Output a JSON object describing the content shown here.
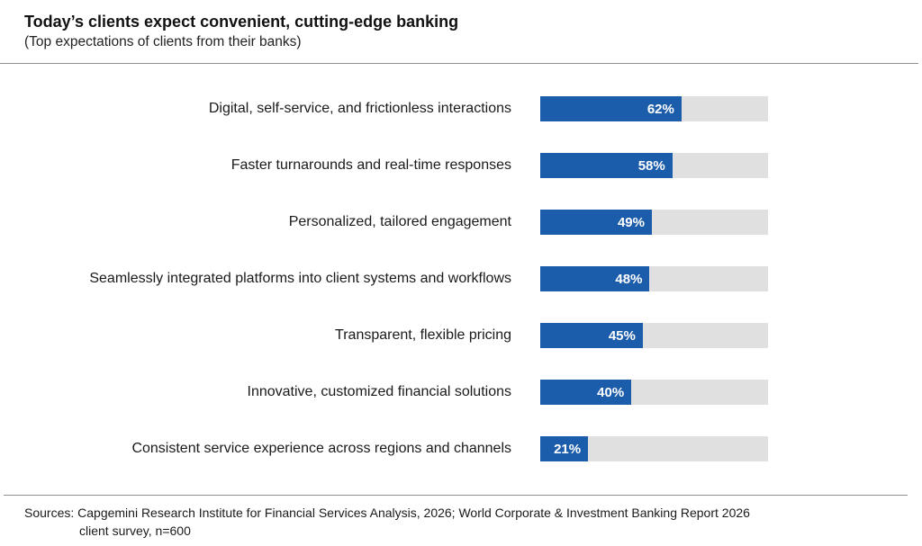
{
  "header": {
    "title": "Today’s clients expect convenient, cutting-edge banking",
    "subtitle": "(Top expectations of clients from their banks)"
  },
  "chart_data": {
    "type": "bar",
    "orientation": "horizontal",
    "title": "Today’s clients expect convenient, cutting-edge banking",
    "subtitle": "(Top expectations of clients from their banks)",
    "categories": [
      "Digital, self-service, and frictionless interactions",
      "Faster turnarounds and real-time responses",
      "Personalized, tailored engagement",
      "Seamlessly integrated platforms into client systems and workflows",
      "Transparent, flexible pricing",
      "Innovative, customized financial solutions",
      "Consistent service experience across regions and channels"
    ],
    "values": [
      62,
      58,
      49,
      48,
      45,
      40,
      21
    ],
    "value_suffix": "%",
    "xlim": [
      0,
      100
    ],
    "grid": false,
    "legend": false,
    "value_labels_position": "inside-end",
    "bar_color": "#1b5cab",
    "track_color": "#e0e0e0",
    "value_label_color": "#ffffff"
  },
  "footer": {
    "sources_line1": "Sources: Capgemini Research Institute for Financial Services Analysis, 2026; World Corporate & Investment Banking Report 2026",
    "sources_line2": "client survey, n=600"
  }
}
